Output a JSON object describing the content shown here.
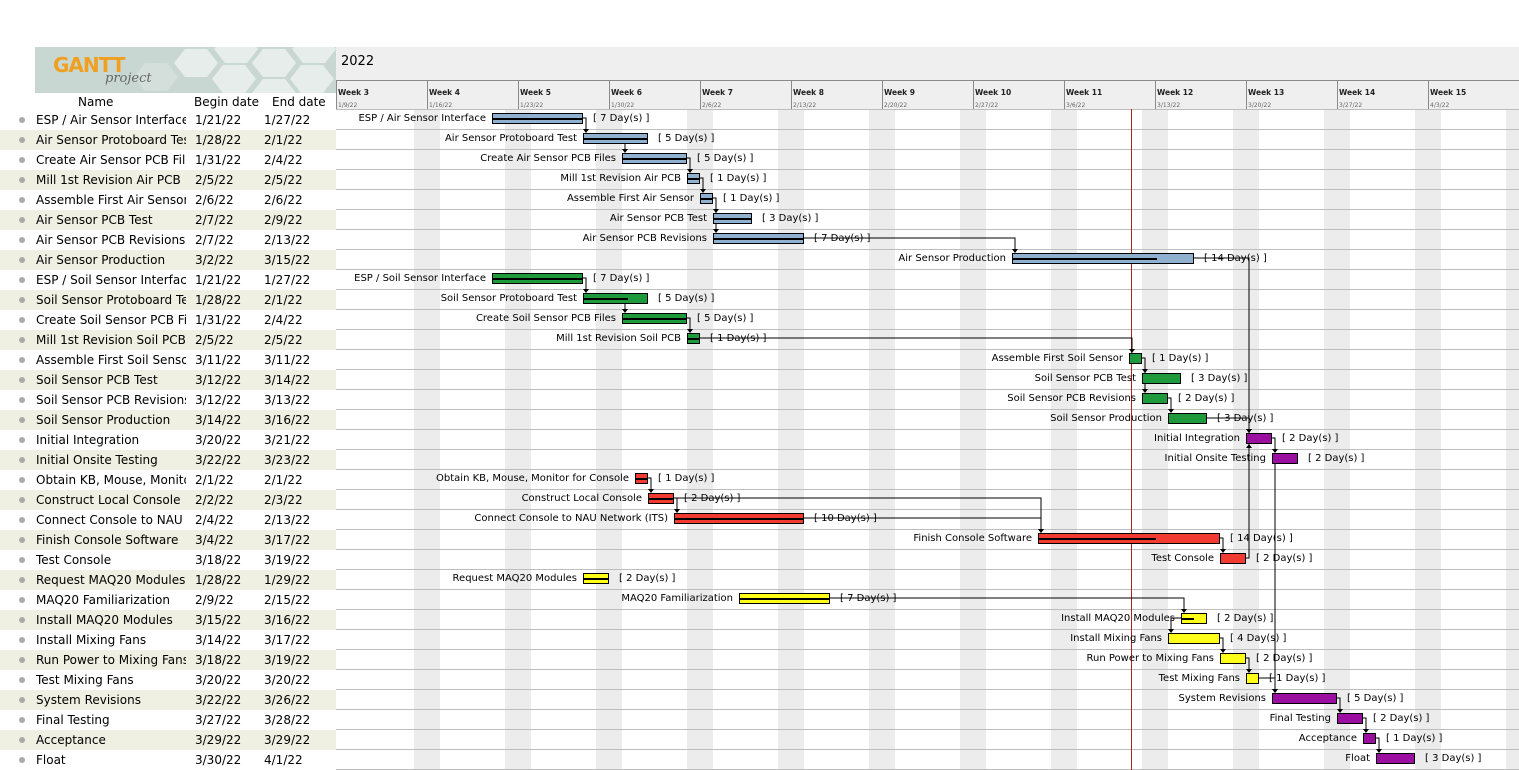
{
  "app": {
    "logo_text": "GANTT",
    "logo_sub": "project",
    "year": "2022"
  },
  "columns": {
    "name": "Name",
    "begin": "Begin date",
    "end": "End date"
  },
  "colors": {
    "blue": "#8fb0cf",
    "green": "#1e9a3c",
    "red": "#f03a32",
    "yellow": "#ffff1a",
    "purple": "#9b0fa0",
    "today_line": "#b02020"
  },
  "timeline": {
    "weeks": [
      {
        "label": "Week 3",
        "date": "1/9/22"
      },
      {
        "label": "Week 4",
        "date": "1/16/22"
      },
      {
        "label": "Week 5",
        "date": "1/23/22"
      },
      {
        "label": "Week 6",
        "date": "1/30/22"
      },
      {
        "label": "Week 7",
        "date": "2/6/22"
      },
      {
        "label": "Week 8",
        "date": "2/13/22"
      },
      {
        "label": "Week 9",
        "date": "2/20/22"
      },
      {
        "label": "Week 10",
        "date": "2/27/22"
      },
      {
        "label": "Week 11",
        "date": "3/6/22"
      },
      {
        "label": "Week 12",
        "date": "3/13/22"
      },
      {
        "label": "Week 13",
        "date": "3/20/22"
      },
      {
        "label": "Week 14",
        "date": "3/27/22"
      },
      {
        "label": "Week 15",
        "date": "4/3/22"
      }
    ]
  },
  "tasks": [
    {
      "name": "ESP / Air Sensor Interface",
      "bar_label": "ESP / Air Sensor Interface",
      "begin": "1/21/22",
      "end": "1/27/22",
      "duration": "[ 7 Day(s) ]",
      "color": "blue",
      "start_day": 12,
      "days": 7,
      "progress": 1.0
    },
    {
      "name": "Air Sensor Protoboard Test",
      "bar_label": "Air Sensor Protoboard Test",
      "begin": "1/28/22",
      "end": "2/1/22",
      "duration": "[ 5 Day(s) ]",
      "color": "blue",
      "start_day": 19,
      "days": 5,
      "progress": 1.0
    },
    {
      "name": "Create Air Sensor PCB Files",
      "bar_label": "Create Air Sensor PCB Files",
      "begin": "1/31/22",
      "end": "2/4/22",
      "duration": "[ 5 Day(s) ]",
      "color": "blue",
      "start_day": 22,
      "days": 5,
      "progress": 1.0
    },
    {
      "name": "Mill 1st Revision Air PCB",
      "bar_label": "Mill 1st Revision Air PCB",
      "begin": "2/5/22",
      "end": "2/5/22",
      "duration": "[ 1 Day(s) ]",
      "color": "blue",
      "start_day": 27,
      "days": 1,
      "progress": 1.0
    },
    {
      "name": "Assemble First Air Sensor",
      "bar_label": "Assemble First Air Sensor",
      "begin": "2/6/22",
      "end": "2/6/22",
      "duration": "[ 1 Day(s) ]",
      "color": "blue",
      "start_day": 28,
      "days": 1,
      "progress": 1.0
    },
    {
      "name": "Air Sensor PCB Test",
      "bar_label": "Air Sensor PCB Test",
      "begin": "2/7/22",
      "end": "2/9/22",
      "duration": "[ 3 Day(s) ]",
      "color": "blue",
      "start_day": 29,
      "days": 3,
      "progress": 1.0
    },
    {
      "name": "Air Sensor PCB Revisions",
      "bar_label": "Air Sensor PCB Revisions",
      "begin": "2/7/22",
      "end": "2/13/22",
      "duration": "[ 7 Day(s) ]",
      "color": "blue",
      "start_day": 29,
      "days": 7,
      "progress": 1.0
    },
    {
      "name": "Air Sensor Production",
      "bar_label": "Air Sensor Production",
      "begin": "3/2/22",
      "end": "3/15/22",
      "duration": "[ 14 Day(s) ]",
      "color": "blue",
      "start_day": 52,
      "days": 14,
      "progress": 0.8
    },
    {
      "name": "ESP / Soil Sensor Interface",
      "bar_label": "ESP / Soil Sensor Interface",
      "begin": "1/21/22",
      "end": "1/27/22",
      "duration": "[ 7 Day(s) ]",
      "color": "green",
      "start_day": 12,
      "days": 7,
      "progress": 1.0
    },
    {
      "name": "Soil Sensor Protoboard Test",
      "bar_label": "Soil Sensor Protoboard Test",
      "begin": "1/28/22",
      "end": "2/1/22",
      "duration": "[ 5 Day(s) ]",
      "color": "green",
      "start_day": 19,
      "days": 5,
      "progress": 0.7
    },
    {
      "name": "Create Soil Sensor PCB Files",
      "bar_label": "Create Soil Sensor PCB Files",
      "begin": "1/31/22",
      "end": "2/4/22",
      "duration": "[ 5 Day(s) ]",
      "color": "green",
      "start_day": 22,
      "days": 5,
      "progress": 1.0
    },
    {
      "name": "Mill 1st Revision Soil PCB",
      "bar_label": "Mill 1st Revision Soil PCB",
      "begin": "2/5/22",
      "end": "2/5/22",
      "duration": "[ 1 Day(s) ]",
      "color": "green",
      "start_day": 27,
      "days": 1,
      "progress": 1.0
    },
    {
      "name": "Assemble First Soil Sensor",
      "bar_label": "Assemble First Soil Sensor",
      "begin": "3/11/22",
      "end": "3/11/22",
      "duration": "[ 1 Day(s) ]",
      "color": "green",
      "start_day": 61,
      "days": 1,
      "progress": 0.0
    },
    {
      "name": "Soil Sensor PCB Test",
      "bar_label": "Soil Sensor PCB Test",
      "begin": "3/12/22",
      "end": "3/14/22",
      "duration": "[ 3 Day(s) ]",
      "color": "green",
      "start_day": 62,
      "days": 3,
      "progress": 0.0
    },
    {
      "name": "Soil Sensor PCB Revisions",
      "bar_label": "Soil Sensor PCB Revisions",
      "begin": "3/12/22",
      "end": "3/13/22",
      "duration": "[ 2 Day(s) ]",
      "color": "green",
      "start_day": 62,
      "days": 2,
      "progress": 0.0
    },
    {
      "name": "Soil Sensor Production",
      "bar_label": "Soil Sensor Production",
      "begin": "3/14/22",
      "end": "3/16/22",
      "duration": "[ 3 Day(s) ]",
      "color": "green",
      "start_day": 64,
      "days": 3,
      "progress": 0.0
    },
    {
      "name": "Initial Integration",
      "bar_label": "Initial Integration",
      "begin": "3/20/22",
      "end": "3/21/22",
      "duration": "[ 2 Day(s) ]",
      "color": "purple",
      "start_day": 70,
      "days": 2,
      "progress": 0.0
    },
    {
      "name": "Initial Onsite Testing",
      "bar_label": "Initial Onsite Testing",
      "begin": "3/22/22",
      "end": "3/23/22",
      "duration": "[ 2 Day(s) ]",
      "color": "purple",
      "start_day": 72,
      "days": 2,
      "progress": 0.0
    },
    {
      "name": "Obtain KB, Mouse, Monitor for Console",
      "bar_label": "Obtain KB, Mouse, Monitor for Console",
      "begin": "2/1/22",
      "end": "2/1/22",
      "duration": "[ 1 Day(s) ]",
      "color": "red",
      "start_day": 23,
      "days": 1,
      "progress": 1.0
    },
    {
      "name": "Construct Local Console",
      "bar_label": "Construct Local Console",
      "begin": "2/2/22",
      "end": "2/3/22",
      "duration": "[ 2 Day(s) ]",
      "color": "red",
      "start_day": 24,
      "days": 2,
      "progress": 1.0
    },
    {
      "name": "Connect Console to NAU Network (ITS)",
      "bar_label": "Connect Console to NAU Network (ITS)",
      "begin": "2/4/22",
      "end": "2/13/22",
      "duration": "[ 10 Day(s) ]",
      "color": "red",
      "start_day": 26,
      "days": 10,
      "progress": 1.0
    },
    {
      "name": "Finish Console Software",
      "bar_label": "Finish Console Software",
      "begin": "3/4/22",
      "end": "3/17/22",
      "duration": "[ 14 Day(s) ]",
      "color": "red",
      "start_day": 54,
      "days": 14,
      "progress": 0.65
    },
    {
      "name": "Test Console",
      "bar_label": "Test Console",
      "begin": "3/18/22",
      "end": "3/19/22",
      "duration": "[ 2 Day(s) ]",
      "color": "red",
      "start_day": 68,
      "days": 2,
      "progress": 0.0
    },
    {
      "name": "Request MAQ20 Modules",
      "bar_label": "Request MAQ20 Modules",
      "begin": "1/28/22",
      "end": "1/29/22",
      "duration": "[ 2 Day(s) ]",
      "color": "yellow",
      "start_day": 19,
      "days": 2,
      "progress": 1.0
    },
    {
      "name": "MAQ20 Familiarization",
      "bar_label": "MAQ20 Familiarization",
      "begin": "2/9/22",
      "end": "2/15/22",
      "duration": "[ 7 Day(s) ]",
      "color": "yellow",
      "start_day": 31,
      "days": 7,
      "progress": 1.0
    },
    {
      "name": "Install MAQ20 Modules",
      "bar_label": "Install MAQ20 Modules",
      "begin": "3/15/22",
      "end": "3/16/22",
      "duration": "[ 2 Day(s) ]",
      "color": "yellow",
      "start_day": 65,
      "days": 2,
      "progress": 0.5
    },
    {
      "name": "Install Mixing Fans",
      "bar_label": "Install Mixing Fans",
      "begin": "3/14/22",
      "end": "3/17/22",
      "duration": "[ 4 Day(s) ]",
      "color": "yellow",
      "start_day": 64,
      "days": 4,
      "progress": 0.0
    },
    {
      "name": "Run Power to Mixing Fans",
      "bar_label": "Run Power to Mixing Fans",
      "begin": "3/18/22",
      "end": "3/19/22",
      "duration": "[ 2 Day(s) ]",
      "color": "yellow",
      "start_day": 68,
      "days": 2,
      "progress": 0.0
    },
    {
      "name": "Test Mixing Fans",
      "bar_label": "Test Mixing Fans",
      "begin": "3/20/22",
      "end": "3/20/22",
      "duration": "[ 1 Day(s) ]",
      "color": "yellow",
      "start_day": 70,
      "days": 1,
      "progress": 0.0
    },
    {
      "name": "System Revisions",
      "bar_label": "System Revisions",
      "begin": "3/22/22",
      "end": "3/26/22",
      "duration": "[ 5 Day(s) ]",
      "color": "purple",
      "start_day": 72,
      "days": 5,
      "progress": 0.0
    },
    {
      "name": "Final Testing",
      "bar_label": "Final Testing",
      "begin": "3/27/22",
      "end": "3/28/22",
      "duration": "[ 2 Day(s) ]",
      "color": "purple",
      "start_day": 77,
      "days": 2,
      "progress": 0.0
    },
    {
      "name": "Acceptance",
      "bar_label": "Acceptance",
      "begin": "3/29/22",
      "end": "3/29/22",
      "duration": "[ 1 Day(s) ]",
      "color": "purple",
      "start_day": 79,
      "days": 1,
      "progress": 0.0
    },
    {
      "name": "Float",
      "bar_label": "Float",
      "begin": "3/30/22",
      "end": "4/1/22",
      "duration": "[ 3 Day(s) ]",
      "color": "purple",
      "start_day": 80,
      "days": 3,
      "progress": 0.0
    }
  ],
  "dependencies": [
    [
      0,
      1
    ],
    [
      1,
      2
    ],
    [
      2,
      3
    ],
    [
      3,
      4
    ],
    [
      4,
      5
    ],
    [
      4,
      6
    ],
    [
      6,
      7
    ],
    [
      7,
      16
    ],
    [
      8,
      9
    ],
    [
      9,
      10
    ],
    [
      10,
      11
    ],
    [
      11,
      12
    ],
    [
      12,
      13
    ],
    [
      12,
      14
    ],
    [
      14,
      15
    ],
    [
      15,
      16
    ],
    [
      16,
      17
    ],
    [
      18,
      19
    ],
    [
      19,
      20
    ],
    [
      20,
      21
    ],
    [
      19,
      21
    ],
    [
      21,
      22
    ],
    [
      22,
      16
    ],
    [
      24,
      25
    ],
    [
      25,
      26
    ],
    [
      26,
      27
    ],
    [
      27,
      28
    ],
    [
      28,
      29
    ],
    [
      17,
      29
    ],
    [
      29,
      30
    ],
    [
      30,
      31
    ],
    [
      31,
      32
    ]
  ]
}
